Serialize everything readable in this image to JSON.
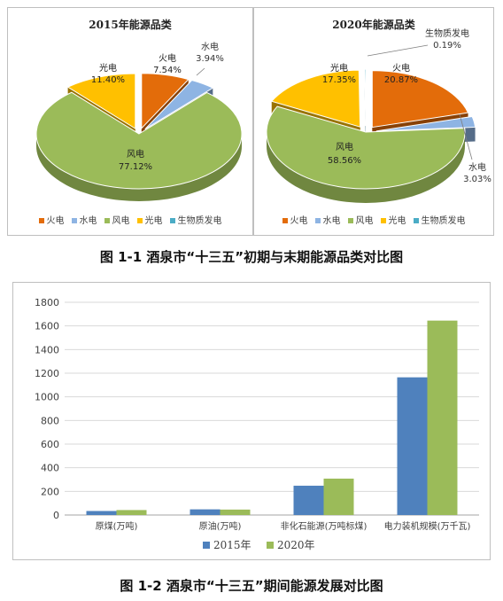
{
  "figure1": {
    "caption": "图 1-1 酒泉市“十三五”初期与末期能源品类对比图",
    "legend": [
      {
        "name": "火电",
        "color": "#E36C0A"
      },
      {
        "name": "水电",
        "color": "#8EB4E3"
      },
      {
        "name": "风电",
        "color": "#9BBB59"
      },
      {
        "name": "光电",
        "color": "#FFC000"
      },
      {
        "name": "生物质发电",
        "color": "#4BACC6"
      }
    ]
  },
  "figure2": {
    "caption": "图 1-2 酒泉市“十三五”期间能源发展对比图"
  },
  "chart_data": [
    {
      "type": "pie",
      "title": "2015年能源品类",
      "slices": [
        {
          "name": "火电",
          "value": 7.54,
          "label": "7.54%",
          "color": "#E36C0A"
        },
        {
          "name": "水电",
          "value": 3.94,
          "label": "3.94%",
          "color": "#8EB4E3"
        },
        {
          "name": "风电",
          "value": 77.12,
          "label": "77.12%",
          "color": "#9BBB59"
        },
        {
          "name": "光电",
          "value": 11.4,
          "label": "11.40%",
          "color": "#FFC000"
        }
      ]
    },
    {
      "type": "pie",
      "title": "2020年能源品类",
      "slices": [
        {
          "name": "火电",
          "value": 20.87,
          "label": "20.87%",
          "color": "#E36C0A"
        },
        {
          "name": "水电",
          "value": 3.03,
          "label": "3.03%",
          "color": "#8EB4E3"
        },
        {
          "name": "风电",
          "value": 58.56,
          "label": "58.56%",
          "color": "#9BBB59"
        },
        {
          "name": "光电",
          "value": 17.35,
          "label": "17.35%",
          "color": "#FFC000"
        },
        {
          "name": "生物质发电",
          "value": 0.19,
          "label": "0.19%",
          "color": "#4BACC6"
        }
      ]
    },
    {
      "type": "bar",
      "categories": [
        "原煤(万吨)",
        "原油(万吨)",
        "非化石能源(万吨标煤)",
        "电力装机规模(万千瓦)"
      ],
      "series": [
        {
          "name": "2015年",
          "values": [
            34,
            48,
            248,
            1165
          ],
          "color": "#4F81BD"
        },
        {
          "name": "2020年",
          "values": [
            42,
            46,
            308,
            1645
          ],
          "color": "#9BBB59"
        }
      ],
      "ylim": [
        0,
        1800
      ],
      "yticks": [
        0,
        200,
        400,
        600,
        800,
        1000,
        1200,
        1400,
        1600,
        1800
      ],
      "grid": true,
      "legend_position": "bottom"
    }
  ]
}
